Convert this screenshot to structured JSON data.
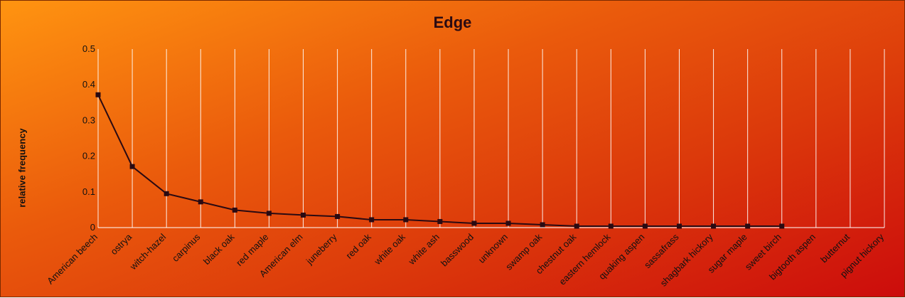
{
  "chart_data": {
    "type": "line",
    "title": "Edge",
    "xlabel": "",
    "ylabel": "relative frequency",
    "ylim": [
      0,
      0.5
    ],
    "yticks": [
      0,
      0.1,
      0.2,
      0.3,
      0.4,
      0.5
    ],
    "ytick_labels": [
      "0",
      "0.1",
      "0.2",
      "0.3",
      "0.4",
      "0.5"
    ],
    "grid": "vertical",
    "legend": "none",
    "categories": [
      "American beech",
      "ostrya",
      "witch-hazel",
      "carpinus",
      "black oak",
      "red maple",
      "American elm",
      "juneberry",
      "red oak",
      "white oak",
      "white ash",
      "basswood",
      "unknown",
      "swamp oak",
      "chestnut oak",
      "eastern hemlock",
      "quaking aspen",
      "sassafrass",
      "shagbark hickory",
      "sugar maple",
      "sweet birch",
      "bigtooth aspen",
      "butternut",
      "pignut hickory"
    ],
    "series": [
      {
        "values": [
          0.372,
          0.171,
          0.095,
          0.072,
          0.049,
          0.04,
          0.035,
          0.031,
          0.022,
          0.022,
          0.017,
          0.012,
          0.012,
          0.008,
          0.004,
          0.004,
          0.004,
          0.004,
          0.004,
          0.004,
          0.004,
          null,
          null,
          null
        ]
      }
    ],
    "colors": {
      "line": "#2a0a12",
      "marker": "#2a0a12",
      "grid": "#ffffff",
      "axis": "#ffffff"
    }
  }
}
